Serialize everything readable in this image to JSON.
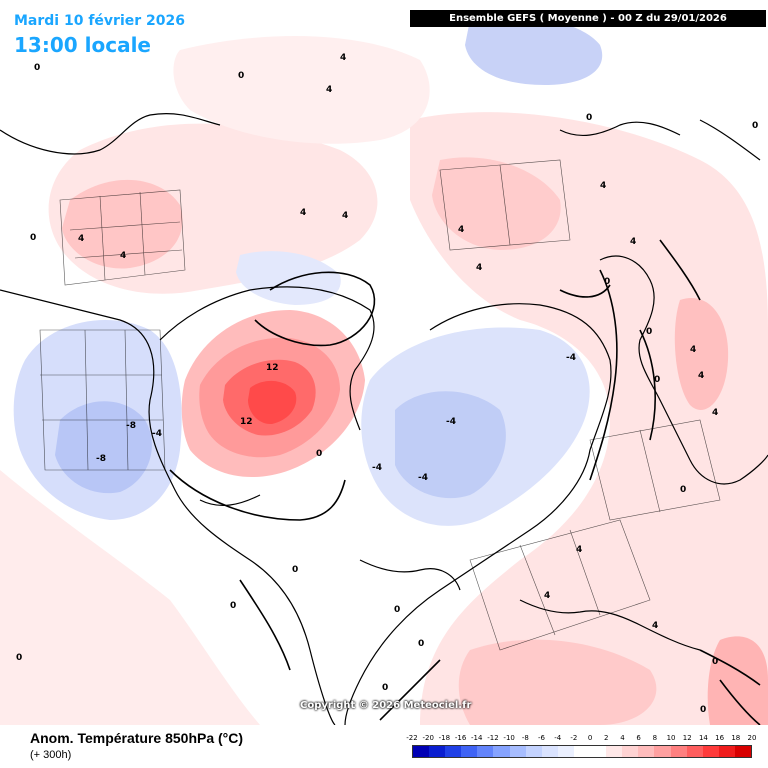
{
  "header": {
    "date": "Mardi 10 février 2026",
    "time": "13:00 locale",
    "run": "Ensemble GEFS  ( Moyenne )  -  00 Z du 29/01/2026"
  },
  "footer": {
    "variable": "Anom. Température 850hPa (°C)",
    "lead": "(+ 300h)",
    "copyright": "Copyright © 2026 Meteociel.fr"
  },
  "legend": {
    "labels": [
      "-22",
      "-20",
      "-18",
      "-16",
      "-14",
      "-12",
      "-10",
      "-8",
      "-6",
      "-4",
      "-2",
      "0",
      "2",
      "4",
      "6",
      "8",
      "10",
      "12",
      "14",
      "16",
      "18",
      "20"
    ],
    "colors": [
      "#0000b4",
      "#0a1ed0",
      "#2040e6",
      "#3f63f5",
      "#6384fb",
      "#86a3ff",
      "#a7bdff",
      "#c4d3ff",
      "#dae3ff",
      "#ebf0ff",
      "#ffffff",
      "#ffffff",
      "#ffe8e8",
      "#ffd3d3",
      "#ffbcbc",
      "#ffa0a0",
      "#ff8080",
      "#ff5e5e",
      "#ff3b3b",
      "#f01c1c",
      "#d80000"
    ]
  },
  "contour_labels": {
    "positives": [
      "12",
      "12",
      "4",
      "4",
      "4",
      "4",
      "4",
      "4",
      "4",
      "4",
      "4",
      "4",
      "4",
      "4",
      "4",
      "4",
      "4",
      "4"
    ],
    "negatives": [
      "-4",
      "-4",
      "-4",
      "-8",
      "-8",
      "-4",
      "-4"
    ],
    "zeros": [
      "0",
      "0",
      "0",
      "0",
      "0",
      "0",
      "0",
      "0",
      "0",
      "0",
      "0",
      "0",
      "0",
      "0",
      "0",
      "0",
      "0",
      "0"
    ]
  }
}
